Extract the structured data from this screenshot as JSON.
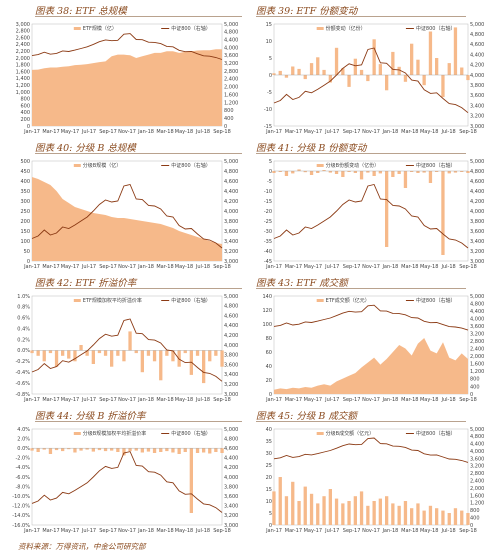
{
  "source_note": "资料来源：万得资讯，中金公司研究部",
  "colors": {
    "area": "#f6b98a",
    "index": "#8b3a14",
    "title": "#8a4a1e"
  },
  "chart_data": [
    {
      "panel_title": "图表 38: ETF 总规模",
      "type": "area",
      "legend": [
        "ETF规模（亿）",
        "中证800（右轴）"
      ],
      "x_ticks": [
        "Jan-17",
        "Mar-17",
        "May-17",
        "Jul-17",
        "Sep-17",
        "Nov-17",
        "Jan-18",
        "Mar-18",
        "May-18",
        "Jul-18",
        "Sep-18"
      ],
      "y_left": {
        "min": 0,
        "max": 3000,
        "ticks": [
          "0",
          "200",
          "400",
          "600",
          "800",
          "1,000",
          "1,200",
          "1,400",
          "1,600",
          "1,800",
          "2,000",
          "2,200",
          "2,400",
          "2,600",
          "2,800",
          "3,000"
        ]
      },
      "y_right": {
        "min": 0,
        "max": 5000,
        "ticks": [
          "0",
          "400",
          "800",
          "1,200",
          "1,600",
          "2,000",
          "2,400",
          "2,800",
          "3,200",
          "3,600",
          "4,000",
          "4,400",
          "4,800",
          "5,000"
        ]
      },
      "area_values": [
        1650,
        1660,
        1700,
        1720,
        1720,
        1740,
        1760,
        1790,
        1800,
        1820,
        1850,
        1880,
        1900,
        2050,
        2100,
        2100,
        2080,
        2000,
        2050,
        2100,
        2150,
        2150,
        2200,
        2200,
        2150,
        2180,
        2200,
        2220,
        2230,
        2230,
        2260,
        2260
      ],
      "index_values": [
        3450,
        3500,
        3620,
        3520,
        3560,
        3680,
        3650,
        3720,
        3800,
        3880,
        4000,
        4130,
        4220,
        4180,
        4200,
        4500,
        4530,
        4240,
        4230,
        4110,
        4100,
        4040,
        3900,
        3880,
        3710,
        3640,
        3650,
        3540,
        3440,
        3420,
        3360,
        3260
      ]
    },
    {
      "panel_title": "图表 39: ETF 份额变动",
      "type": "bar",
      "legend": [
        "份额变动（亿份）",
        "中证800（右轴）"
      ],
      "x_ticks": [
        "Jan-17",
        "Mar-17",
        "May-17",
        "Jul-17",
        "Sep-17",
        "Nov-17",
        "Jan-18",
        "Mar-18",
        "May-18",
        "Jul-18",
        "Sep-18"
      ],
      "y_left": {
        "min": -15,
        "max": 15,
        "ticks": [
          "-15",
          "-10",
          "-5",
          "0",
          "5",
          "10",
          "15"
        ]
      },
      "y_right": {
        "min": 3000,
        "max": 5000,
        "ticks": [
          "3,000",
          "3,200",
          "3,400",
          "3,600",
          "3,800",
          "4,000",
          "4,200",
          "4,400",
          "4,600",
          "4,800",
          "5,000"
        ]
      },
      "bar_values": [
        0.5,
        1.2,
        -0.8,
        2.5,
        1.8,
        -1.2,
        3.5,
        5.2,
        1.5,
        -2.2,
        8.0,
        2.0,
        -3.5,
        4.8,
        1.5,
        -1.8,
        10.5,
        3.2,
        -4.5,
        6.8,
        2.4,
        -2.0,
        9.2,
        4.5,
        -3.0,
        12.8,
        5.0,
        -6.5,
        3.5,
        14.0,
        2.2,
        -1.5
      ],
      "index_values": [
        3450,
        3500,
        3620,
        3520,
        3560,
        3680,
        3650,
        3720,
        3800,
        3880,
        4000,
        4130,
        4220,
        4180,
        4200,
        4500,
        4530,
        4240,
        4230,
        4110,
        4100,
        4040,
        3900,
        3880,
        3710,
        3640,
        3650,
        3540,
        3440,
        3420,
        3360,
        3260
      ]
    },
    {
      "panel_title": "图表 40: 分级 B 总规模",
      "type": "area",
      "legend": [
        "分级B规模（亿）",
        "中证800（右轴）"
      ],
      "x_ticks": [
        "Jan-17",
        "Mar-17",
        "May-17",
        "Jul-17",
        "Sep-17",
        "Nov-17",
        "Jan-18",
        "Mar-18",
        "May-18",
        "Jul-18",
        "Sep-18"
      ],
      "y_left": {
        "min": 0,
        "max": 500,
        "ticks": [
          "0",
          "50",
          "100",
          "150",
          "200",
          "250",
          "300",
          "350",
          "400",
          "450",
          "500"
        ]
      },
      "y_right": {
        "min": 3000,
        "max": 5000,
        "ticks": [
          "3,000",
          "3,200",
          "3,400",
          "3,600",
          "3,800",
          "4,000",
          "4,200",
          "4,400",
          "4,600",
          "4,800",
          "5,000"
        ]
      },
      "area_values": [
        420,
        410,
        395,
        380,
        350,
        310,
        290,
        270,
        260,
        250,
        240,
        235,
        230,
        220,
        215,
        215,
        210,
        205,
        200,
        195,
        190,
        185,
        175,
        165,
        150,
        140,
        130,
        120,
        110,
        100,
        90,
        85
      ],
      "index_values": [
        3450,
        3500,
        3620,
        3520,
        3560,
        3680,
        3650,
        3720,
        3800,
        3880,
        4000,
        4130,
        4220,
        4180,
        4200,
        4500,
        4530,
        4240,
        4230,
        4110,
        4100,
        4040,
        3900,
        3880,
        3710,
        3640,
        3650,
        3540,
        3440,
        3420,
        3360,
        3260
      ]
    },
    {
      "panel_title": "图表 41: 分级 B 份额变动",
      "type": "bar",
      "legend": [
        "分级B份额变动（亿份）",
        "中证800（右轴）"
      ],
      "x_ticks": [
        "Jan-17",
        "Mar-17",
        "May-17",
        "Jul-17",
        "Sep-17",
        "Nov-17",
        "Jan-18",
        "Mar-18",
        "May-18",
        "Jul-18",
        "Sep-18"
      ],
      "y_left": {
        "min": -45,
        "max": 5,
        "ticks": [
          "-45",
          "-40",
          "-35",
          "-30",
          "-25",
          "-20",
          "-15",
          "-10",
          "-5",
          "0",
          "5"
        ]
      },
      "y_right": {
        "min": 3000,
        "max": 5000,
        "ticks": [
          "3,000",
          "3,200",
          "3,400",
          "3,600",
          "3,800",
          "4,000",
          "4,200",
          "4,400",
          "4,600",
          "4,800",
          "5,000"
        ]
      },
      "bar_values": [
        -1.0,
        -0.5,
        -2.5,
        -1.2,
        0.8,
        -0.6,
        -2.0,
        -1.0,
        0.5,
        -0.8,
        -1.5,
        -3.0,
        -0.5,
        -1.0,
        -4.2,
        -0.8,
        -2.5,
        -1.2,
        -38.0,
        -3.0,
        -1.5,
        -8.5,
        -0.5,
        -1.0,
        -0.8,
        -6.0,
        -0.5,
        -42.0,
        -1.2,
        -0.8,
        -0.5,
        -1.0
      ],
      "index_values": [
        3450,
        3500,
        3620,
        3520,
        3560,
        3680,
        3650,
        3720,
        3800,
        3880,
        4000,
        4130,
        4220,
        4180,
        4200,
        4500,
        4530,
        4240,
        4230,
        4110,
        4100,
        4040,
        3900,
        3880,
        3710,
        3640,
        3650,
        3540,
        3440,
        3420,
        3360,
        3260
      ]
    },
    {
      "panel_title": "图表 42: ETF 折溢价率",
      "type": "bar",
      "legend": [
        "ETF规模加权平均折溢价率",
        "中证800（右轴）"
      ],
      "x_ticks": [
        "Jan-17",
        "Mar-17",
        "May-17",
        "Jul-17",
        "Sep-17",
        "Nov-17",
        "Jan-18",
        "Mar-18",
        "May-18",
        "Jul-18",
        "Sep-18"
      ],
      "y_left": {
        "min": -0.8,
        "max": 1.0,
        "ticks": [
          "-0.8%",
          "-0.6%",
          "-0.4%",
          "-0.2%",
          "0.0%",
          "0.2%",
          "0.4%",
          "0.6%",
          "0.8%",
          "1.0%"
        ]
      },
      "y_right": {
        "min": 3000,
        "max": 5000,
        "ticks": [
          "3,000",
          "3,200",
          "3,400",
          "3,600",
          "3,800",
          "4,000",
          "4,200",
          "4,400",
          "4,600",
          "4,800",
          "5,000"
        ]
      },
      "bar_values": [
        -0.05,
        -0.1,
        -0.2,
        -0.05,
        -0.3,
        -0.1,
        -0.15,
        -0.2,
        0.1,
        -0.1,
        -0.25,
        -0.05,
        -0.1,
        -0.3,
        -0.1,
        -0.2,
        0.35,
        -0.05,
        -0.4,
        -0.1,
        -0.2,
        -0.55,
        -0.1,
        -0.2,
        -0.3,
        -0.05,
        -0.45,
        -0.1,
        -0.6,
        -0.2,
        -0.1,
        -0.3
      ],
      "index_values": [
        3450,
        3500,
        3620,
        3520,
        3560,
        3680,
        3650,
        3720,
        3800,
        3880,
        4000,
        4130,
        4220,
        4180,
        4200,
        4500,
        4530,
        4240,
        4230,
        4110,
        4100,
        4040,
        3900,
        3880,
        3710,
        3640,
        3650,
        3540,
        3440,
        3420,
        3360,
        3260
      ]
    },
    {
      "panel_title": "图表 43: ETF 成交额",
      "type": "area",
      "legend": [
        "ETF成交额（亿元）",
        "中证800（右轴）"
      ],
      "x_ticks": [
        "Jan-17",
        "Mar-17",
        "May-17",
        "Jul-17",
        "Sep-17",
        "Nov-17",
        "Jan-18",
        "Mar-18",
        "May-18",
        "Jul-18",
        "Sep-18"
      ],
      "y_left": {
        "min": 0,
        "max": 140,
        "ticks": [
          "0",
          "20",
          "40",
          "60",
          "80",
          "100",
          "120",
          "140"
        ]
      },
      "y_right": {
        "min": 0,
        "max": 5000,
        "ticks": [
          "0",
          "400",
          "800",
          "1,200",
          "1,600",
          "2,000",
          "2,400",
          "2,800",
          "3,200",
          "3,600",
          "4,000",
          "4,400",
          "4,800",
          "5,000"
        ]
      },
      "area_values": [
        6,
        8,
        7,
        9,
        8,
        10,
        9,
        12,
        14,
        12,
        18,
        22,
        26,
        30,
        38,
        45,
        52,
        42,
        50,
        60,
        70,
        65,
        55,
        72,
        80,
        62,
        58,
        74,
        52,
        48,
        58,
        50
      ],
      "index_values": [
        3450,
        3500,
        3620,
        3520,
        3560,
        3680,
        3650,
        3720,
        3800,
        3880,
        4000,
        4130,
        4220,
        4180,
        4200,
        4500,
        4530,
        4240,
        4230,
        4110,
        4100,
        4040,
        3900,
        3880,
        3710,
        3640,
        3650,
        3540,
        3440,
        3420,
        3360,
        3260
      ]
    },
    {
      "panel_title": "图表 44: 分级 B 折溢价率",
      "type": "bar",
      "legend": [
        "分级B规模加权平均折溢价率",
        "中证800（右轴）"
      ],
      "x_ticks": [
        "Jan-17",
        "Mar-17",
        "May-17",
        "Jul-17",
        "Sep-17",
        "Nov-17",
        "Jan-18",
        "Mar-18",
        "May-18",
        "Jul-18",
        "Sep-18"
      ],
      "y_left": {
        "min": -16,
        "max": 4,
        "ticks": [
          "-16.0%",
          "-14.0%",
          "-12.0%",
          "-10.0%",
          "-8.0%",
          "-6.0%",
          "-4.0%",
          "-2.0%",
          "0.0%",
          "2.0%",
          "4.0%"
        ]
      },
      "y_right": {
        "min": 3000,
        "max": 5000,
        "ticks": [
          "3,000",
          "3,200",
          "3,400",
          "3,600",
          "3,800",
          "4,000",
          "4,200",
          "4,400",
          "4,600",
          "4,800",
          "5,000"
        ]
      },
      "bar_values": [
        -0.5,
        -0.8,
        -0.3,
        -1.2,
        -0.4,
        -0.6,
        -0.2,
        -0.9,
        -0.5,
        -0.3,
        -0.7,
        -0.4,
        -0.6,
        -0.5,
        -0.8,
        -1.5,
        -0.6,
        -0.5,
        -0.9,
        -0.7,
        -1.0,
        -0.8,
        -0.6,
        -0.9,
        -1.2,
        -0.8,
        -13.5,
        -1.0,
        -0.9,
        -1.1,
        -0.8,
        -1.0
      ],
      "index_values": [
        3450,
        3500,
        3620,
        3520,
        3560,
        3680,
        3650,
        3720,
        3800,
        3880,
        4000,
        4130,
        4220,
        4180,
        4200,
        4500,
        4530,
        4240,
        4230,
        4110,
        4100,
        4040,
        3900,
        3880,
        3710,
        3640,
        3650,
        3540,
        3440,
        3420,
        3360,
        3260
      ]
    },
    {
      "panel_title": "图表 45: 分级 B 成交额",
      "type": "bar",
      "legend": [
        "分级B成交额（亿元）",
        "中证800（右轴）"
      ],
      "x_ticks": [
        "Jan-17",
        "Mar-17",
        "May-17",
        "Jul-17",
        "Sep-17",
        "Nov-17",
        "Jan-18",
        "Mar-18",
        "May-18",
        "Jul-18",
        "Sep-18"
      ],
      "y_left": {
        "min": 0,
        "max": 40,
        "ticks": [
          "0",
          "5",
          "10",
          "15",
          "20",
          "25",
          "30",
          "35",
          "40"
        ]
      },
      "y_right": {
        "min": 0,
        "max": 5000,
        "ticks": [
          "0",
          "400",
          "800",
          "1,200",
          "1,600",
          "2,000",
          "2,400",
          "2,800",
          "3,200",
          "3,600",
          "4,000",
          "4,400",
          "4,800",
          "5,000"
        ]
      },
      "bar_values": [
        14,
        20,
        12,
        18,
        10,
        16,
        13,
        9,
        12,
        15,
        11,
        9,
        10,
        12,
        14,
        8,
        10,
        11,
        12,
        9,
        8,
        10,
        7,
        9,
        6,
        8,
        7,
        6,
        5,
        7,
        6,
        5
      ],
      "index_values": [
        3450,
        3500,
        3620,
        3520,
        3560,
        3680,
        3650,
        3720,
        3800,
        3880,
        4000,
        4130,
        4220,
        4180,
        4200,
        4500,
        4530,
        4240,
        4230,
        4110,
        4100,
        4040,
        3900,
        3880,
        3710,
        3640,
        3650,
        3540,
        3440,
        3420,
        3360,
        3260
      ]
    }
  ]
}
